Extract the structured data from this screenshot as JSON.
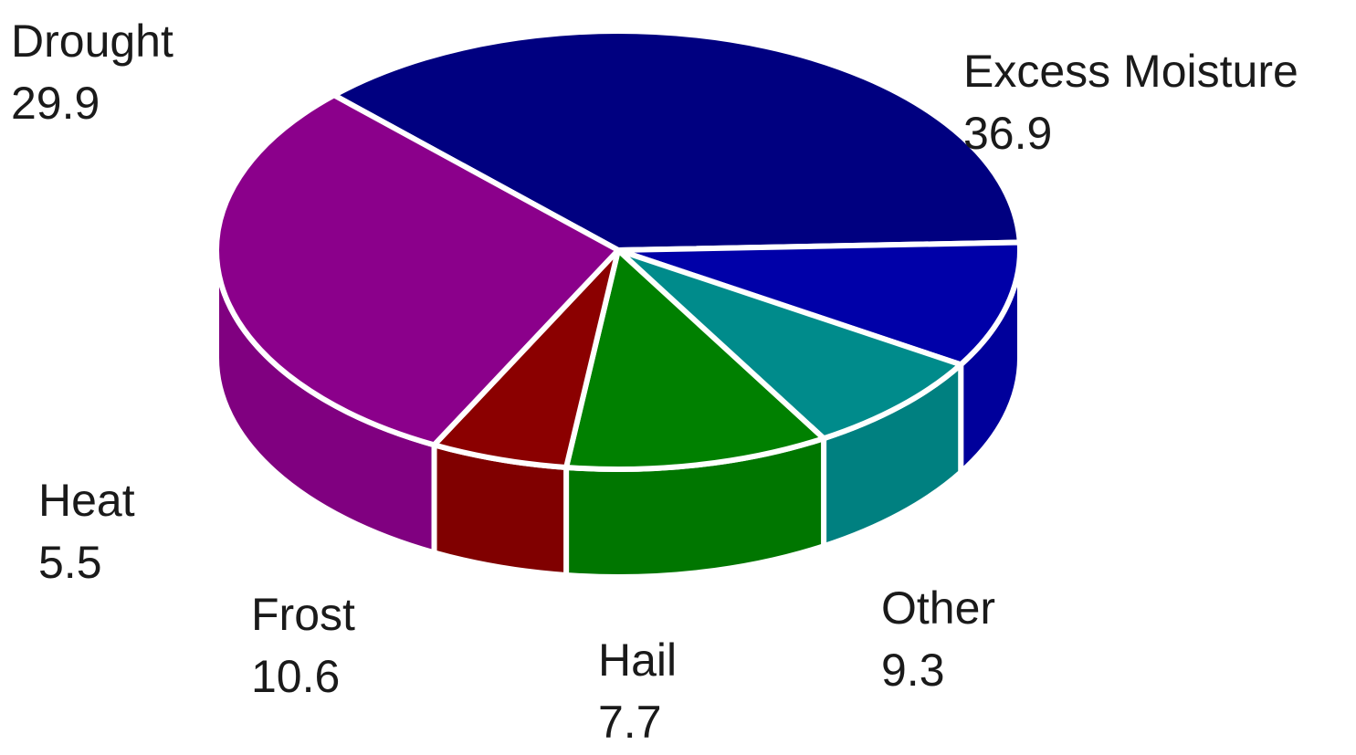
{
  "chart_data": {
    "type": "pie",
    "style": "3d",
    "unit": "",
    "slices": [
      {
        "label": "Excess Moisture",
        "value": 36.9,
        "value_text": "36.9",
        "color": "#000080"
      },
      {
        "label": "Other",
        "value": 9.3,
        "value_text": "9.3",
        "color": "#0000A8"
      },
      {
        "label": "Hail",
        "value": 7.7,
        "value_text": "7.7",
        "color": "#008B8B"
      },
      {
        "label": "Frost",
        "value": 10.6,
        "value_text": "10.6",
        "color": "#008000"
      },
      {
        "label": "Heat",
        "value": 5.5,
        "value_text": "5.5",
        "color": "#8B0000"
      },
      {
        "label": "Drought",
        "value": 29.9,
        "value_text": "29.9",
        "color": "#8B008B"
      }
    ],
    "title": "",
    "legend": "none"
  }
}
